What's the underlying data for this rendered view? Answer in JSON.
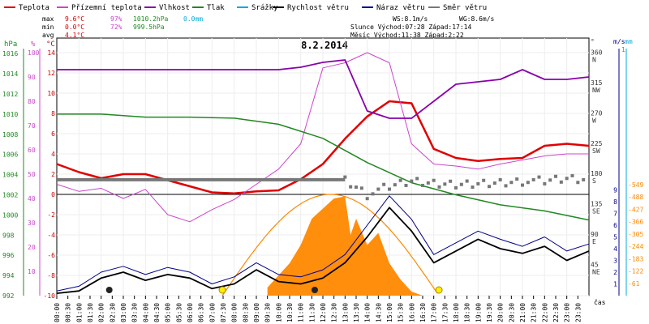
{
  "chart_data": {
    "type": "line",
    "title": "8.2.2014",
    "legend": [
      {
        "label": "Teplota",
        "color": "#e00000"
      },
      {
        "label": "Přízemní teplota",
        "color": "#cc44cc"
      },
      {
        "label": "Vlhkost",
        "color": "#8800aa"
      },
      {
        "label": "Tlak",
        "color": "#228822"
      },
      {
        "label": "Srážky",
        "color": "#00aadd"
      },
      {
        "label": "Rychlost větru",
        "color": "#000000"
      },
      {
        "label": "Náraz větru",
        "color": "#000088"
      },
      {
        "label": "Směr větru",
        "color": "#777777"
      }
    ],
    "stats": {
      "rows": [
        {
          "label": "max",
          "temp": "9.6°C",
          "hum": "97%",
          "press": "1010.2hPa",
          "rain": "0.0mm"
        },
        {
          "label": "min",
          "temp": "0.0°C",
          "hum": "72%",
          "press": "999.5hPa",
          "rain": ""
        },
        {
          "label": "avg",
          "temp": "4.1°C",
          "hum": "",
          "press": "",
          "rain": ""
        }
      ],
      "ws": "WS:8.1m/s",
      "wg": "WG:8.6m/s",
      "sun_line": "Slunce Východ:07:28  Západ:17:14",
      "moon_line": "Měsíc  Východ:11:38  Západ:2:22"
    },
    "axes_left": [
      {
        "name": "hPa",
        "color": "#228822",
        "ticks": [
          "992",
          "994",
          "996",
          "998",
          "1000",
          "1002",
          "1004",
          "1006",
          "1008",
          "1010",
          "1012",
          "1014",
          "1016"
        ]
      },
      {
        "name": "%",
        "color": "#cc44cc",
        "ticks": [
          "10",
          "20",
          "30",
          "40",
          "50",
          "60",
          "70",
          "80",
          "90",
          "100"
        ]
      },
      {
        "name": "°C",
        "color": "#cc0000",
        "ticks": [
          "-10",
          "-8",
          "-6",
          "-4",
          "-2",
          "0",
          "2",
          "4",
          "6",
          "8",
          "10",
          "12",
          "14"
        ]
      }
    ],
    "axes_right": [
      {
        "name": "°",
        "color": "#333333",
        "ticks": [
          "45 NE",
          "90 E",
          "135 SE",
          "180 S",
          "225 SW",
          "270 W",
          "315 NW",
          "360 N"
        ]
      },
      {
        "name": "m/s",
        "color": "#000088",
        "ticks": [
          "1",
          "2",
          "3",
          "4",
          "5",
          "6",
          "7",
          "8",
          "9"
        ]
      },
      {
        "name": "mm",
        "color": "#00aadd",
        "ticks": [
          "1",
          "0"
        ]
      },
      {
        "name": "",
        "color": "#ff8800",
        "ticks": [
          "61",
          "122",
          "183",
          "244",
          "305",
          "366",
          "427",
          "488",
          "549"
        ]
      }
    ],
    "time_labels": [
      "00:00",
      "00:30",
      "01:00",
      "01:30",
      "02:00",
      "02:30",
      "03:00",
      "03:30",
      "04:00",
      "04:30",
      "05:00",
      "05:30",
      "06:00",
      "06:30",
      "07:00",
      "07:30",
      "08:00",
      "08:30",
      "09:00",
      "09:30",
      "10:00",
      "10:30",
      "11:00",
      "11:30",
      "12:00",
      "12:30",
      "13:00",
      "13:30",
      "14:00",
      "14:30",
      "15:00",
      "15:30",
      "16:00",
      "16:30",
      "17:00",
      "17:30",
      "18:00",
      "18:30",
      "19:00",
      "19:30",
      "20:00",
      "20:30",
      "21:00",
      "21:30",
      "22:00",
      "22:30",
      "23:00",
      "23:30"
    ],
    "xlabel": "čas",
    "series": [
      {
        "name": "Teplota",
        "unit": "°C",
        "color": "#e00000",
        "x": [
          0,
          1,
          2,
          3,
          4,
          5,
          6,
          7,
          8,
          9,
          10,
          11,
          12,
          13,
          14,
          15,
          16,
          17,
          18,
          19,
          20,
          21,
          22,
          23,
          24
        ],
        "values": [
          3.0,
          2.2,
          1.6,
          2.0,
          2.0,
          1.4,
          0.8,
          0.2,
          0.1,
          0.3,
          0.4,
          1.5,
          3.0,
          5.5,
          7.7,
          9.2,
          9.0,
          4.5,
          3.6,
          3.3,
          3.5,
          3.6,
          4.8,
          5.0,
          4.8
        ]
      },
      {
        "name": "Přízemní teplota",
        "unit": "°C",
        "color": "#cc44cc",
        "x": [
          0,
          1,
          2,
          3,
          4,
          5,
          6,
          7,
          8,
          9,
          10,
          11,
          12,
          13,
          14,
          15,
          16,
          17,
          18,
          19,
          20,
          21,
          22,
          23,
          24
        ],
        "values": [
          1.0,
          0.3,
          0.6,
          -0.4,
          0.5,
          -2.0,
          -2.7,
          -1.5,
          -0.5,
          1.0,
          2.5,
          5.0,
          12.5,
          13.0,
          14.0,
          13.0,
          5.0,
          3.0,
          2.8,
          2.5,
          3.0,
          3.4,
          3.8,
          4.0,
          4.0
        ]
      },
      {
        "name": "Vlhkost",
        "unit": "%",
        "color": "#8800aa",
        "x": [
          0,
          2,
          5,
          8,
          10,
          11,
          12,
          13,
          14,
          15,
          16,
          17,
          18,
          19,
          20,
          21,
          22,
          23,
          24
        ],
        "values": [
          93,
          93,
          93,
          93,
          93,
          94,
          96,
          97,
          76,
          73,
          73,
          80,
          87,
          88,
          89,
          93,
          89,
          89,
          90
        ]
      },
      {
        "name": "Tlak",
        "unit": "hPa",
        "color": "#228822",
        "x": [
          0,
          2,
          4,
          6,
          8,
          10,
          12,
          14,
          16,
          18,
          20,
          22,
          24
        ],
        "values": [
          1010.0,
          1010.0,
          1009.7,
          1009.7,
          1009.6,
          1009.0,
          1007.6,
          1005.2,
          1003.2,
          1002.0,
          1001.0,
          1000.4,
          999.5
        ]
      },
      {
        "name": "Rychlost větru",
        "unit": "m/s",
        "color": "#000000",
        "x": [
          0,
          1,
          2,
          3,
          4,
          5,
          6,
          7,
          8,
          9,
          10,
          11,
          12,
          13,
          14,
          15,
          16,
          17,
          18,
          19,
          20,
          21,
          22,
          23,
          24
        ],
        "values": [
          0.2,
          0.4,
          1.5,
          2.0,
          1.3,
          1.8,
          1.5,
          0.6,
          1.0,
          2.2,
          1.2,
          1.0,
          1.5,
          2.8,
          5.0,
          7.5,
          5.5,
          2.8,
          3.8,
          4.8,
          4.0,
          3.6,
          4.2,
          3.0,
          3.8
        ]
      },
      {
        "name": "Náraz větru",
        "unit": "m/s",
        "color": "#000088",
        "x": [
          0,
          1,
          2,
          3,
          4,
          5,
          6,
          7,
          8,
          9,
          10,
          11,
          12,
          13,
          14,
          15,
          16,
          17,
          18,
          19,
          20,
          21,
          22,
          23,
          24
        ],
        "values": [
          0.4,
          0.8,
          2.0,
          2.5,
          1.8,
          2.4,
          2.0,
          1.0,
          1.6,
          2.8,
          1.8,
          1.6,
          2.2,
          3.5,
          6.0,
          8.5,
          6.5,
          3.5,
          4.5,
          5.5,
          4.8,
          4.2,
          5.0,
          3.8,
          4.4
        ]
      },
      {
        "name": "Směr větru",
        "unit": "°",
        "color": "#777777",
        "x": [
          0,
          13,
          13.5,
          14,
          15,
          16,
          17,
          18,
          19,
          20,
          21,
          22,
          23,
          24
        ],
        "values": [
          172,
          172,
          162,
          150,
          160,
          168,
          165,
          164,
          166,
          168,
          170,
          168,
          172,
          170
        ]
      }
    ],
    "solar_radiation": {
      "color": "#ff8800",
      "unit": "W/m²",
      "x": [
        9.5,
        10,
        10.5,
        11,
        11.5,
        12,
        12.5,
        13,
        13.25,
        13.5,
        14,
        14.5,
        15,
        15.5,
        16,
        16.5
      ],
      "values": [
        40,
        100,
        160,
        250,
        380,
        430,
        480,
        490,
        300,
        380,
        250,
        310,
        160,
        80,
        20,
        0
      ]
    },
    "sun_line_marker": {
      "rise": "07:28",
      "set": "17:14",
      "color": "#ff8800"
    },
    "markers": [
      {
        "type": "moon",
        "time": "02:22"
      },
      {
        "type": "sun-rise",
        "time": "07:28"
      },
      {
        "type": "moon",
        "time": "11:38"
      },
      {
        "type": "sun-set",
        "time": "17:14"
      }
    ]
  }
}
